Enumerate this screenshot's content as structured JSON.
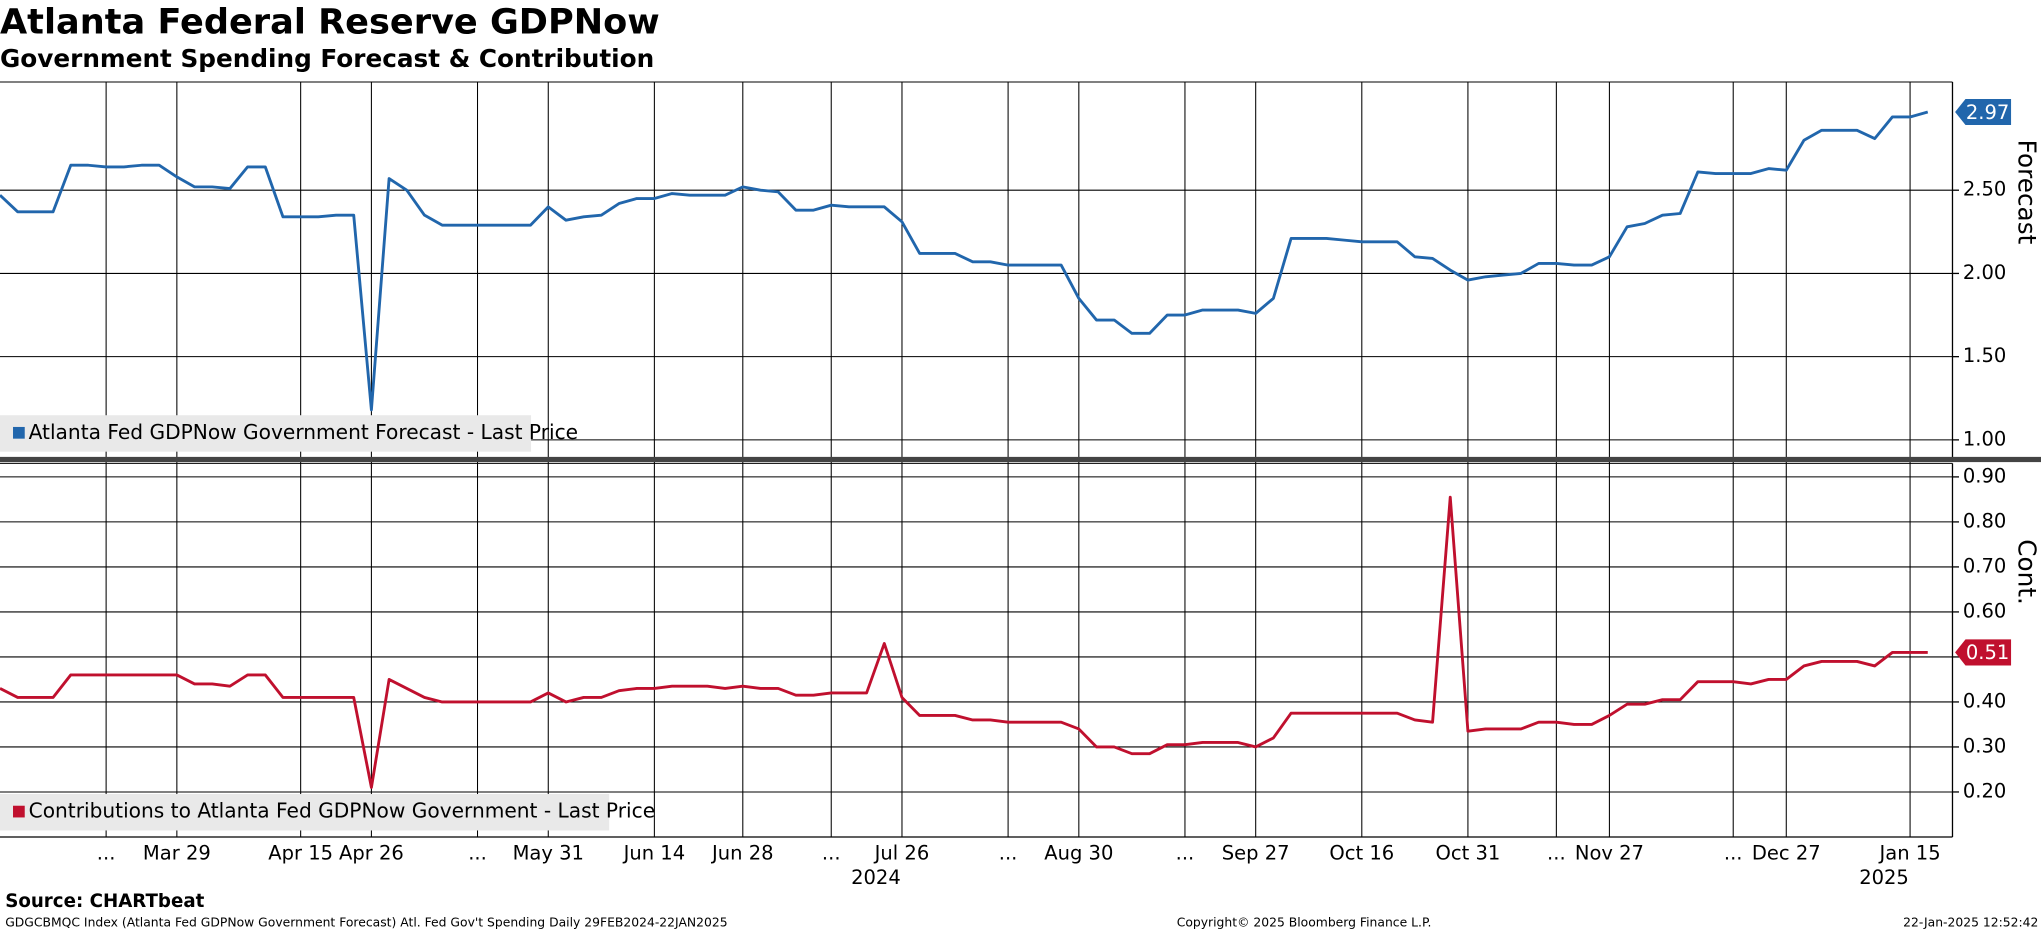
{
  "header": {
    "title": "Atlanta Federal Reserve GDPNow",
    "subtitle": "Government Spending Forecast & Contribution"
  },
  "chart_data": [
    {
      "type": "line",
      "y_label": "Forecast",
      "series": [
        {
          "name": "Atlanta Fed GDPNow Government Forecast - Last Price",
          "color": "#2166ac",
          "values": [
            2.47,
            2.37,
            2.37,
            2.37,
            2.65,
            2.65,
            2.64,
            2.64,
            2.65,
            2.65,
            2.58,
            2.52,
            2.52,
            2.51,
            2.64,
            2.64,
            2.34,
            2.34,
            2.34,
            2.35,
            2.35,
            1.18,
            2.57,
            2.5,
            2.35,
            2.29,
            2.29,
            2.29,
            2.29,
            2.29,
            2.29,
            2.4,
            2.32,
            2.34,
            2.35,
            2.42,
            2.45,
            2.45,
            2.48,
            2.47,
            2.47,
            2.47,
            2.52,
            2.5,
            2.49,
            2.38,
            2.38,
            2.41,
            2.4,
            2.4,
            2.4,
            2.31,
            2.12,
            2.12,
            2.12,
            2.07,
            2.07,
            2.05,
            2.05,
            2.05,
            2.05,
            1.85,
            1.72,
            1.72,
            1.64,
            1.64,
            1.75,
            1.75,
            1.78,
            1.78,
            1.78,
            1.76,
            1.85,
            2.21,
            2.21,
            2.21,
            2.2,
            2.19,
            2.19,
            2.19,
            2.1,
            2.09,
            2.02,
            1.96,
            1.98,
            1.99,
            2.0,
            2.06,
            2.06,
            2.05,
            2.05,
            2.1,
            2.28,
            2.3,
            2.35,
            2.36,
            2.61,
            2.6,
            2.6,
            2.6,
            2.63,
            2.62,
            2.8,
            2.86,
            2.86,
            2.86,
            2.81,
            2.94,
            2.94,
            2.97
          ]
        }
      ],
      "ylim": [
        0.89,
        3.15
      ],
      "yticks": [
        {
          "value": 1,
          "label": "1.00"
        },
        {
          "value": 1.5,
          "label": "1.50"
        },
        {
          "value": 2,
          "label": "2.00"
        },
        {
          "value": 2.5,
          "label": "2.50"
        }
      ],
      "grid": true
    },
    {
      "type": "line",
      "y_label": "Cont.",
      "categories": [
        null,
        null,
        null,
        null,
        null,
        null,
        "...",
        null,
        null,
        null,
        "Mar 29",
        null,
        null,
        null,
        null,
        null,
        null,
        "Apr 15",
        null,
        null,
        null,
        "Apr 26",
        null,
        null,
        null,
        null,
        null,
        "...",
        null,
        null,
        null,
        "May 31",
        null,
        null,
        null,
        null,
        null,
        "Jun 14",
        null,
        null,
        null,
        null,
        "Jun 28",
        null,
        null,
        null,
        null,
        "...",
        null,
        null,
        null,
        "Jul 26",
        null,
        null,
        null,
        null,
        null,
        "...",
        null,
        null,
        null,
        "Aug 30",
        null,
        null,
        null,
        null,
        null,
        "...",
        null,
        null,
        null,
        "Sep 27",
        null,
        null,
        null,
        null,
        null,
        "Oct 16",
        null,
        null,
        null,
        null,
        null,
        "Oct 31",
        null,
        null,
        null,
        null,
        "...",
        null,
        null,
        "Nov 27",
        null,
        null,
        null,
        null,
        null,
        null,
        "...",
        null,
        null,
        "Dec 27",
        null,
        null,
        null,
        null,
        null,
        null,
        "Jan 15",
        null
      ],
      "years": [
        null,
        null,
        null,
        null,
        null,
        null,
        null,
        null,
        null,
        null,
        null,
        null,
        null,
        null,
        null,
        null,
        null,
        null,
        null,
        null,
        null,
        null,
        null,
        null,
        null,
        null,
        null,
        null,
        null,
        null,
        null,
        null,
        null,
        null,
        null,
        null,
        null,
        null,
        null,
        null,
        null,
        null,
        null,
        null,
        null,
        null,
        null,
        null,
        null,
        null,
        null,
        "2024",
        null,
        null,
        null,
        null,
        null,
        null,
        null,
        null,
        null,
        null,
        null,
        null,
        null,
        null,
        null,
        null,
        null,
        null,
        null,
        null,
        null,
        null,
        null,
        null,
        null,
        null,
        null,
        null,
        null,
        null,
        null,
        null,
        null,
        null,
        null,
        null,
        null,
        null,
        null,
        null,
        null,
        null,
        null,
        null,
        null,
        null,
        null,
        null,
        null,
        null,
        null,
        null,
        null,
        null,
        null,
        null,
        "2025",
        null
      ],
      "series": [
        {
          "name": "Contributions to Atlanta Fed GDPNow Government - Last Price",
          "color": "#c0102e",
          "values": [
            0.43,
            0.41,
            0.41,
            0.41,
            0.46,
            0.46,
            0.46,
            0.46,
            0.46,
            0.46,
            0.46,
            0.44,
            0.44,
            0.435,
            0.46,
            0.46,
            0.41,
            0.41,
            0.41,
            0.41,
            0.41,
            0.21,
            0.45,
            0.43,
            0.41,
            0.4,
            0.4,
            0.4,
            0.4,
            0.4,
            0.4,
            0.42,
            0.4,
            0.41,
            0.41,
            0.425,
            0.43,
            0.43,
            0.435,
            0.435,
            0.435,
            0.43,
            0.435,
            0.43,
            0.43,
            0.415,
            0.415,
            0.42,
            0.42,
            0.42,
            0.53,
            0.41,
            0.37,
            0.37,
            0.37,
            0.36,
            0.36,
            0.355,
            0.355,
            0.355,
            0.355,
            0.34,
            0.3,
            0.3,
            0.285,
            0.285,
            0.305,
            0.305,
            0.31,
            0.31,
            0.31,
            0.3,
            0.32,
            0.375,
            0.375,
            0.375,
            0.375,
            0.375,
            0.375,
            0.375,
            0.36,
            0.355,
            0.855,
            0.335,
            0.34,
            0.34,
            0.34,
            0.355,
            0.355,
            0.35,
            0.35,
            0.37,
            0.395,
            0.395,
            0.405,
            0.405,
            0.445,
            0.445,
            0.445,
            0.44,
            0.45,
            0.45,
            0.48,
            0.49,
            0.49,
            0.49,
            0.48,
            0.51,
            0.51,
            0.51
          ]
        }
      ],
      "ylim": [
        0.1,
        0.93
      ],
      "yticks": [
        {
          "value": 0.2,
          "label": "0.20"
        },
        {
          "value": 0.3,
          "label": "0.30"
        },
        {
          "value": 0.4,
          "label": "0.40"
        },
        {
          "value": 0.5,
          "label": "0.50"
        },
        {
          "value": 0.6,
          "label": "0.60"
        },
        {
          "value": 0.7,
          "label": "0.70"
        },
        {
          "value": 0.8,
          "label": "0.80"
        },
        {
          "value": 0.9,
          "label": "0.90"
        }
      ],
      "grid": true
    }
  ],
  "footer": {
    "source": "Source: CHARTbeat",
    "description": "GDGCBMQC Index (Atlanta Fed GDPNow Government Forecast) Atl. Fed Gov't Spending  Daily 29FEB2024-22JAN2025",
    "copyright": "Copyright© 2025 Bloomberg Finance L.P.",
    "timestamp": "22-Jan-2025 12:52:42"
  }
}
